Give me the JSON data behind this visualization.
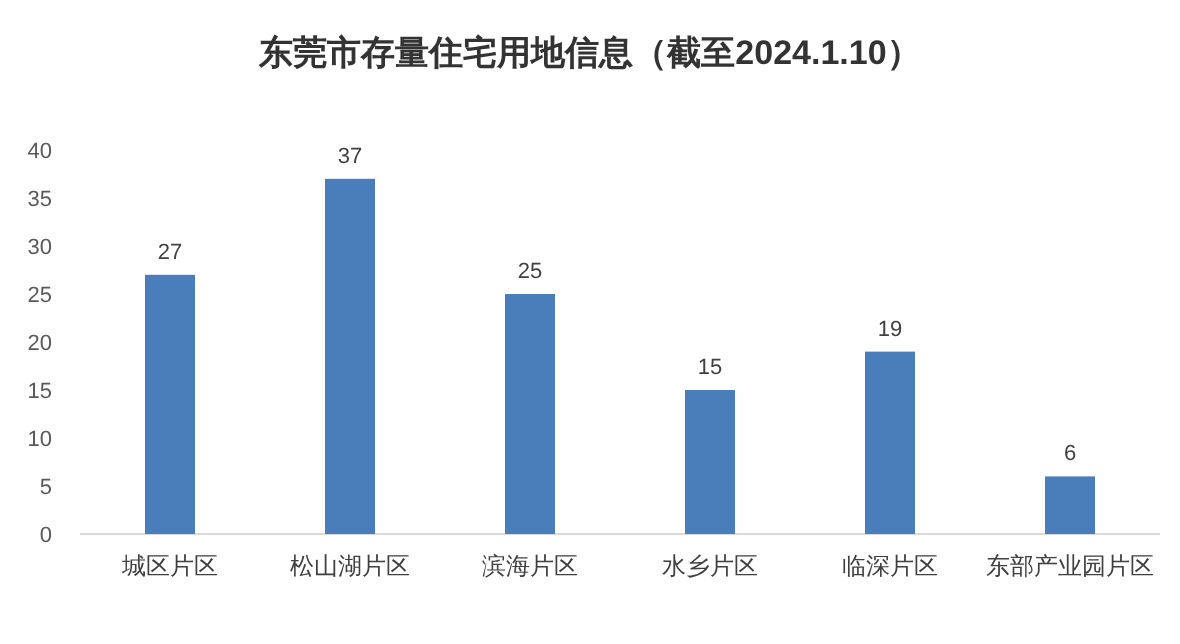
{
  "chart_data": {
    "type": "bar",
    "title": "东莞市存量住宅用地信息（截至2024.1.10）",
    "categories": [
      "城区片区",
      "松山湖片区",
      "滨海片区",
      "水乡片区",
      "临深片区",
      "东部产业园片区"
    ],
    "values": [
      27,
      37,
      25,
      15,
      19,
      6
    ],
    "color": "#4a7ebb",
    "ylim": [
      0,
      40
    ],
    "yticks": [
      0,
      5,
      10,
      15,
      20,
      25,
      30,
      35,
      40
    ],
    "data_labels": true,
    "grid": false
  }
}
